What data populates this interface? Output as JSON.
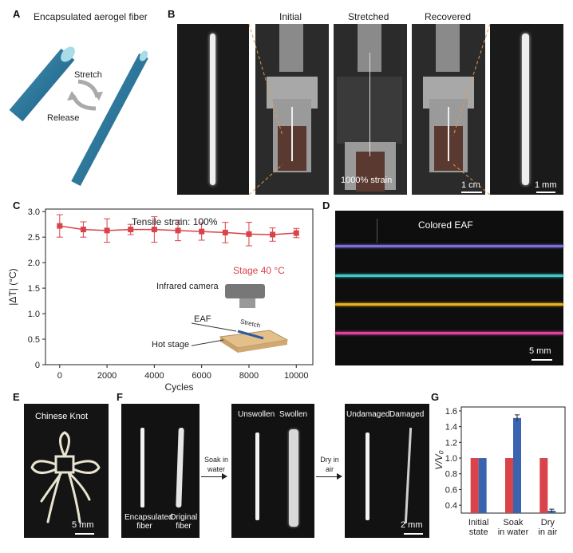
{
  "panels": {
    "a": "A",
    "b": "B",
    "c": "C",
    "d": "D",
    "e": "E",
    "f": "F",
    "g": "G"
  },
  "panel_a": {
    "title": "Encapsulated aerogel fiber",
    "stretch": "Stretch",
    "release": "Release"
  },
  "panel_b": {
    "initial": "Initial",
    "stretched": "Stretched",
    "recovered": "Recovered",
    "strain": "1000% strain",
    "scale_cm": "1 cm",
    "scale_mm": "1 mm"
  },
  "panel_c": {
    "title": "Tensile strain: 100%",
    "stage": "Stage 40 °C",
    "camera": "Infrared camera",
    "eaf": "EAF",
    "stretch": "Stretch",
    "hot_stage": "Hot stage"
  },
  "panel_d": {
    "title": "Colored EAF",
    "scale": "5 mm",
    "fiber_colors": [
      "#7a70d8",
      "#3fc9c9",
      "#e8b020",
      "#e040a0"
    ]
  },
  "panel_e": {
    "title": "Chinese Knot",
    "scale": "5 mm"
  },
  "panel_f": {
    "encapsulated": "Encapsulated fiber",
    "original": "Original fiber",
    "soak": "Soak in water",
    "unswollen": "Unswollen",
    "swollen": "Swollen",
    "dry": "Dry in air",
    "undamaged": "Undamaged",
    "damaged": "Damaged",
    "scale": "2 mm"
  },
  "colors": {
    "red": "#d9434a",
    "blue": "#3a64b0"
  },
  "chart_data": [
    {
      "type": "line",
      "xlabel": "Cycles",
      "ylabel": "|ΔT| (°C)",
      "x": [
        0,
        1000,
        2000,
        3000,
        4000,
        5000,
        6000,
        7000,
        8000,
        9000,
        10000
      ],
      "y": [
        2.72,
        2.65,
        2.63,
        2.65,
        2.65,
        2.63,
        2.61,
        2.59,
        2.56,
        2.55,
        2.58
      ],
      "err": [
        0.22,
        0.15,
        0.23,
        0.1,
        0.25,
        0.2,
        0.17,
        0.2,
        0.23,
        0.13,
        0.09
      ],
      "xticks": [
        0,
        2000,
        4000,
        6000,
        8000,
        10000
      ],
      "yticks": [
        0,
        0.5,
        1.0,
        1.5,
        2.0,
        2.5,
        3.0
      ],
      "xlim": [
        -600,
        10700
      ],
      "ylim": [
        0,
        3.05
      ]
    },
    {
      "type": "bar",
      "ylabel": "V/V₀",
      "categories": [
        "Initial state",
        "Soak in water",
        "Dry in air"
      ],
      "series": [
        {
          "values": [
            1.0,
            1.0,
            1.0
          ]
        },
        {
          "values": [
            1.0,
            1.51,
            0.33
          ]
        }
      ],
      "err": [
        0,
        0.04,
        0.02
      ],
      "yticks": [
        0.4,
        0.6,
        0.8,
        1.0,
        1.2,
        1.4,
        1.6
      ],
      "ylim": [
        0.3,
        1.65
      ]
    }
  ]
}
